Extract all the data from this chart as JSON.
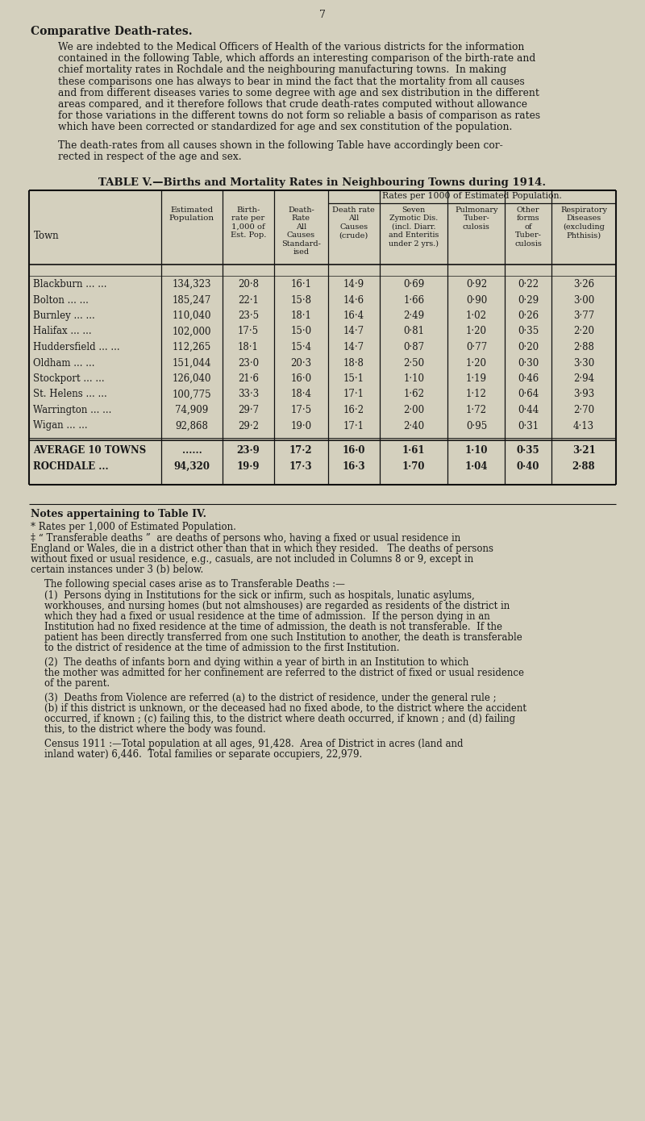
{
  "page_number": "7",
  "bg_color": "#d4d0be",
  "text_color": "#1a1a1a",
  "heading": "Comparative Death-rates.",
  "para1_lines": [
    "We are indebted to the Medical Officers of Health of the various districts for the information",
    "contained in the following Table, which affords an interesting comparison of the birth-rate and",
    "chief mortality rates in Rochdale and the neighbouring manufacturing towns.  In making",
    "these comparisons one has always to bear in mind the fact that the mortality from all causes",
    "and from different diseases varies to some degree with age and sex distribution in the different",
    "areas compared, and it therefore follows that crude death-rates computed without allowance",
    "for those variations in the different towns do not form so reliable a basis of comparison as rates",
    "which have been corrected or standardized for age and sex constitution of the population."
  ],
  "para2_lines": [
    "The death-rates from all causes shown in the following Table have accordingly been cor-",
    "rected in respect of the age and sex."
  ],
  "table_title": "TABLE V.—Births and Mortality Rates in Neighbouring Towns during 1914.",
  "rates_header": "Rates per 1000 of Estimated Population.",
  "col_headers": [
    "Town",
    "Estimated\nPopulation",
    "Birth-\nrate per\n1,000 of\nEst. Pop.",
    "Death-\nRate\nAll\nCauses\nStandard-\nised",
    "Death rate\nAll\nCauses\n(crude)",
    "Seven\nZymotic Dis.\n(incl. Diarr.\nand Enteritis\nunder 2 yrs.)",
    "Pulmonary\nTuber-\nculosis",
    "Other\nforms\nof\nTuber-\nculosis",
    "Respiratory\nDiseases\n(excluding\nPhthisis)"
  ],
  "towns": [
    "Blackburn",
    "Bolton",
    "Burnley",
    "Halifax",
    "Huddersfield",
    "Oldham",
    "Stockport",
    "St. Helens",
    "Warrington",
    "Wigan"
  ],
  "populations": [
    "134,323",
    "185,247",
    "110,040",
    "102,000",
    "112,265",
    "151,044",
    "126,040",
    "100,775",
    "74,909",
    "92,868"
  ],
  "birth_rates": [
    "20·8",
    "22·1",
    "23·5",
    "17·5",
    "18·1",
    "23·0",
    "21·6",
    "33·3",
    "29·7",
    "29·2"
  ],
  "std_rates": [
    "16·1",
    "15·8",
    "18·1",
    "15·0",
    "15·4",
    "20·3",
    "16·0",
    "18·4",
    "17·5",
    "19·0"
  ],
  "crude_rates": [
    "14·9",
    "14·6",
    "16·4",
    "14·7",
    "14·7",
    "18·8",
    "15·1",
    "17·1",
    "16·2",
    "17·1"
  ],
  "zymotic": [
    "0·69",
    "1·66",
    "2·49",
    "0·81",
    "0·87",
    "2·50",
    "1·10",
    "1·62",
    "2·00",
    "2·40"
  ],
  "pulm_tb": [
    "0·92",
    "0·90",
    "1·02",
    "1·20",
    "0·77",
    "1·20",
    "1·19",
    "1·12",
    "1·72",
    "0·95"
  ],
  "other_tb": [
    "0·22",
    "0·29",
    "0·26",
    "0·35",
    "0·20",
    "0·30",
    "0·46",
    "0·64",
    "0·44",
    "0·31"
  ],
  "resp": [
    "3·26",
    "3·00",
    "3·77",
    "2·20",
    "2·88",
    "3·30",
    "2·94",
    "3·93",
    "2·70",
    "4·13"
  ],
  "avg_birth": "23·9",
  "avg_std": "17·2",
  "avg_crude": "16·0",
  "avg_zymotic": "1·61",
  "avg_pulm": "1·10",
  "avg_other": "0·35",
  "avg_resp": "3·21",
  "rochdale_pop": "94,320",
  "rochdale_birth": "19·9",
  "rochdale_std": "17·3",
  "rochdale_crude": "16·3",
  "rochdale_zymotic": "1·70",
  "rochdale_pulm": "1·04",
  "rochdale_other": "0·40",
  "rochdale_resp": "2·88",
  "notes_heading": "Notes appertaining to Table IV.",
  "note_star": "* Rates per 1,000 of Estimated Population.",
  "dagger_lines": [
    "‡ “ Transferable deaths ”  are deaths of persons who, having a fixed or usual residence in",
    "England or Wales, die in a district other than that in which they resided.   The deaths of persons",
    "without fixed or usual residence, e.g., casuals, are not included in Columns 8 or 9, except in",
    "certain instances under 3 (b) below."
  ],
  "note_following": "The following special cases arise as to Transferable Deaths :—",
  "note1_lines": [
    "(1)  Persons dying in Institutions for the sick or infirm, such as hospitals, lunatic asylums,",
    "workhouses, and nursing homes (but not almshouses) are regarded as residents of the district in",
    "which they had a fixed or usual residence at the time of admission.  If the person dying in an",
    "Institution had no fixed residence at the time of admission, the death is not transferable.  If the",
    "patient has been directly transferred from one such Institution to another, the death is transferable",
    "to the district of residence at the time of admission to the first Institution."
  ],
  "note2_lines": [
    "(2)  The deaths of infants born and dying within a year of birth in an Institution to which",
    "the mother was admitted for her confinement are referred to the district of fixed or usual residence",
    "of the parent."
  ],
  "note3_lines": [
    "(3)  Deaths from Violence are referred (a) to the district of residence, under the general rule ;",
    "(b) if this district is unknown, or the deceased had no fixed abode, to the district where the accident",
    "occurred, if known ; (c) failing this, to the district where death occurred, if known ; and (d) failing",
    "this, to the district where the body was found."
  ],
  "census_lines": [
    "Census 1911 :—Total population at all ages, 91,428.  Area of District in acres (land and",
    "inland water) 6,446.  Total families or separate occupiers, 22,979."
  ]
}
